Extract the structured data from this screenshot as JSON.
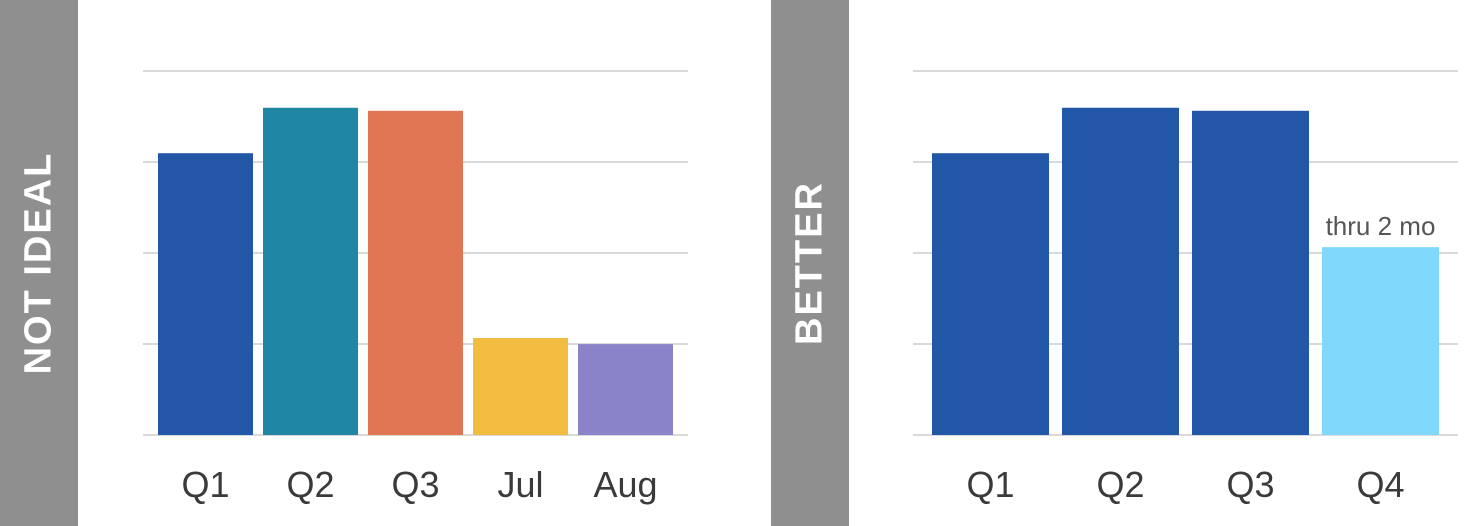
{
  "panels": {
    "left_label": "NOT IDEAL",
    "right_label": "BETTER"
  },
  "chart_data": [
    {
      "type": "bar",
      "categories": [
        "Q1",
        "Q2",
        "Q3",
        "Jul",
        "Aug"
      ],
      "values": [
        93,
        108,
        107,
        32,
        30
      ],
      "colors": [
        "#2157a6",
        "#1f86a4",
        "#e07654",
        "#f2bc41",
        "#8a83c9"
      ],
      "ylim": [
        0,
        120
      ],
      "grid": true,
      "title": "",
      "xlabel": "",
      "ylabel": ""
    },
    {
      "type": "bar",
      "categories": [
        "Q1",
        "Q2",
        "Q3",
        "Q4"
      ],
      "values": [
        93,
        108,
        107,
        62
      ],
      "colors": [
        "#2157a6",
        "#2157a6",
        "#2157a6",
        "#80d8fb"
      ],
      "ylim": [
        0,
        120
      ],
      "grid": true,
      "annotations": [
        {
          "category": "Q4",
          "text": "thru 2 mo"
        }
      ],
      "title": "",
      "xlabel": "",
      "ylabel": ""
    }
  ]
}
